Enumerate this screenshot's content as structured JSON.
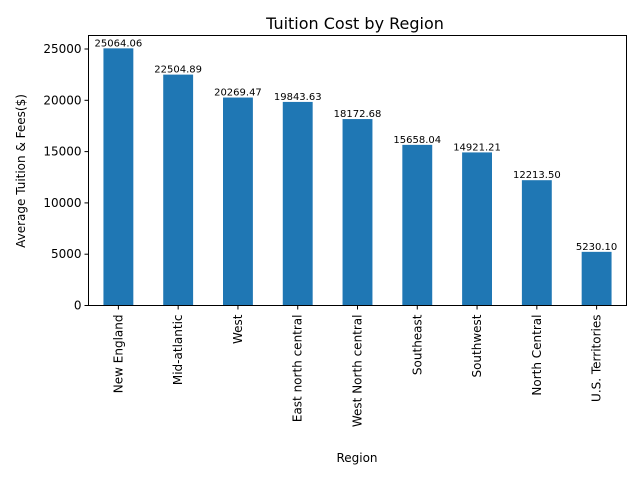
{
  "chart_data": {
    "type": "bar",
    "title": "Tuition Cost by Region",
    "xlabel": "Region",
    "ylabel": "Average Tuition & Fees($)",
    "categories": [
      "New England",
      "Mid-atlantic",
      "West",
      "East north central",
      "West North central",
      "Southeast",
      "Southwest",
      "North Central",
      "U.S. Territories"
    ],
    "values": [
      25064.06,
      22504.89,
      20269.47,
      19843.63,
      18172.68,
      15658.04,
      14921.21,
      12213.5,
      5230.1
    ],
    "value_labels": [
      "25064.06",
      "22504.89",
      "20269.47",
      "19843.63",
      "18172.68",
      "15658.04",
      "14921.21",
      "12213.50",
      "5230.10"
    ],
    "ylim": [
      0,
      26317
    ],
    "yticks": [
      0,
      5000,
      10000,
      15000,
      20000,
      25000
    ],
    "grid": false,
    "legend": "none",
    "bar_color": "#1f77b4"
  }
}
